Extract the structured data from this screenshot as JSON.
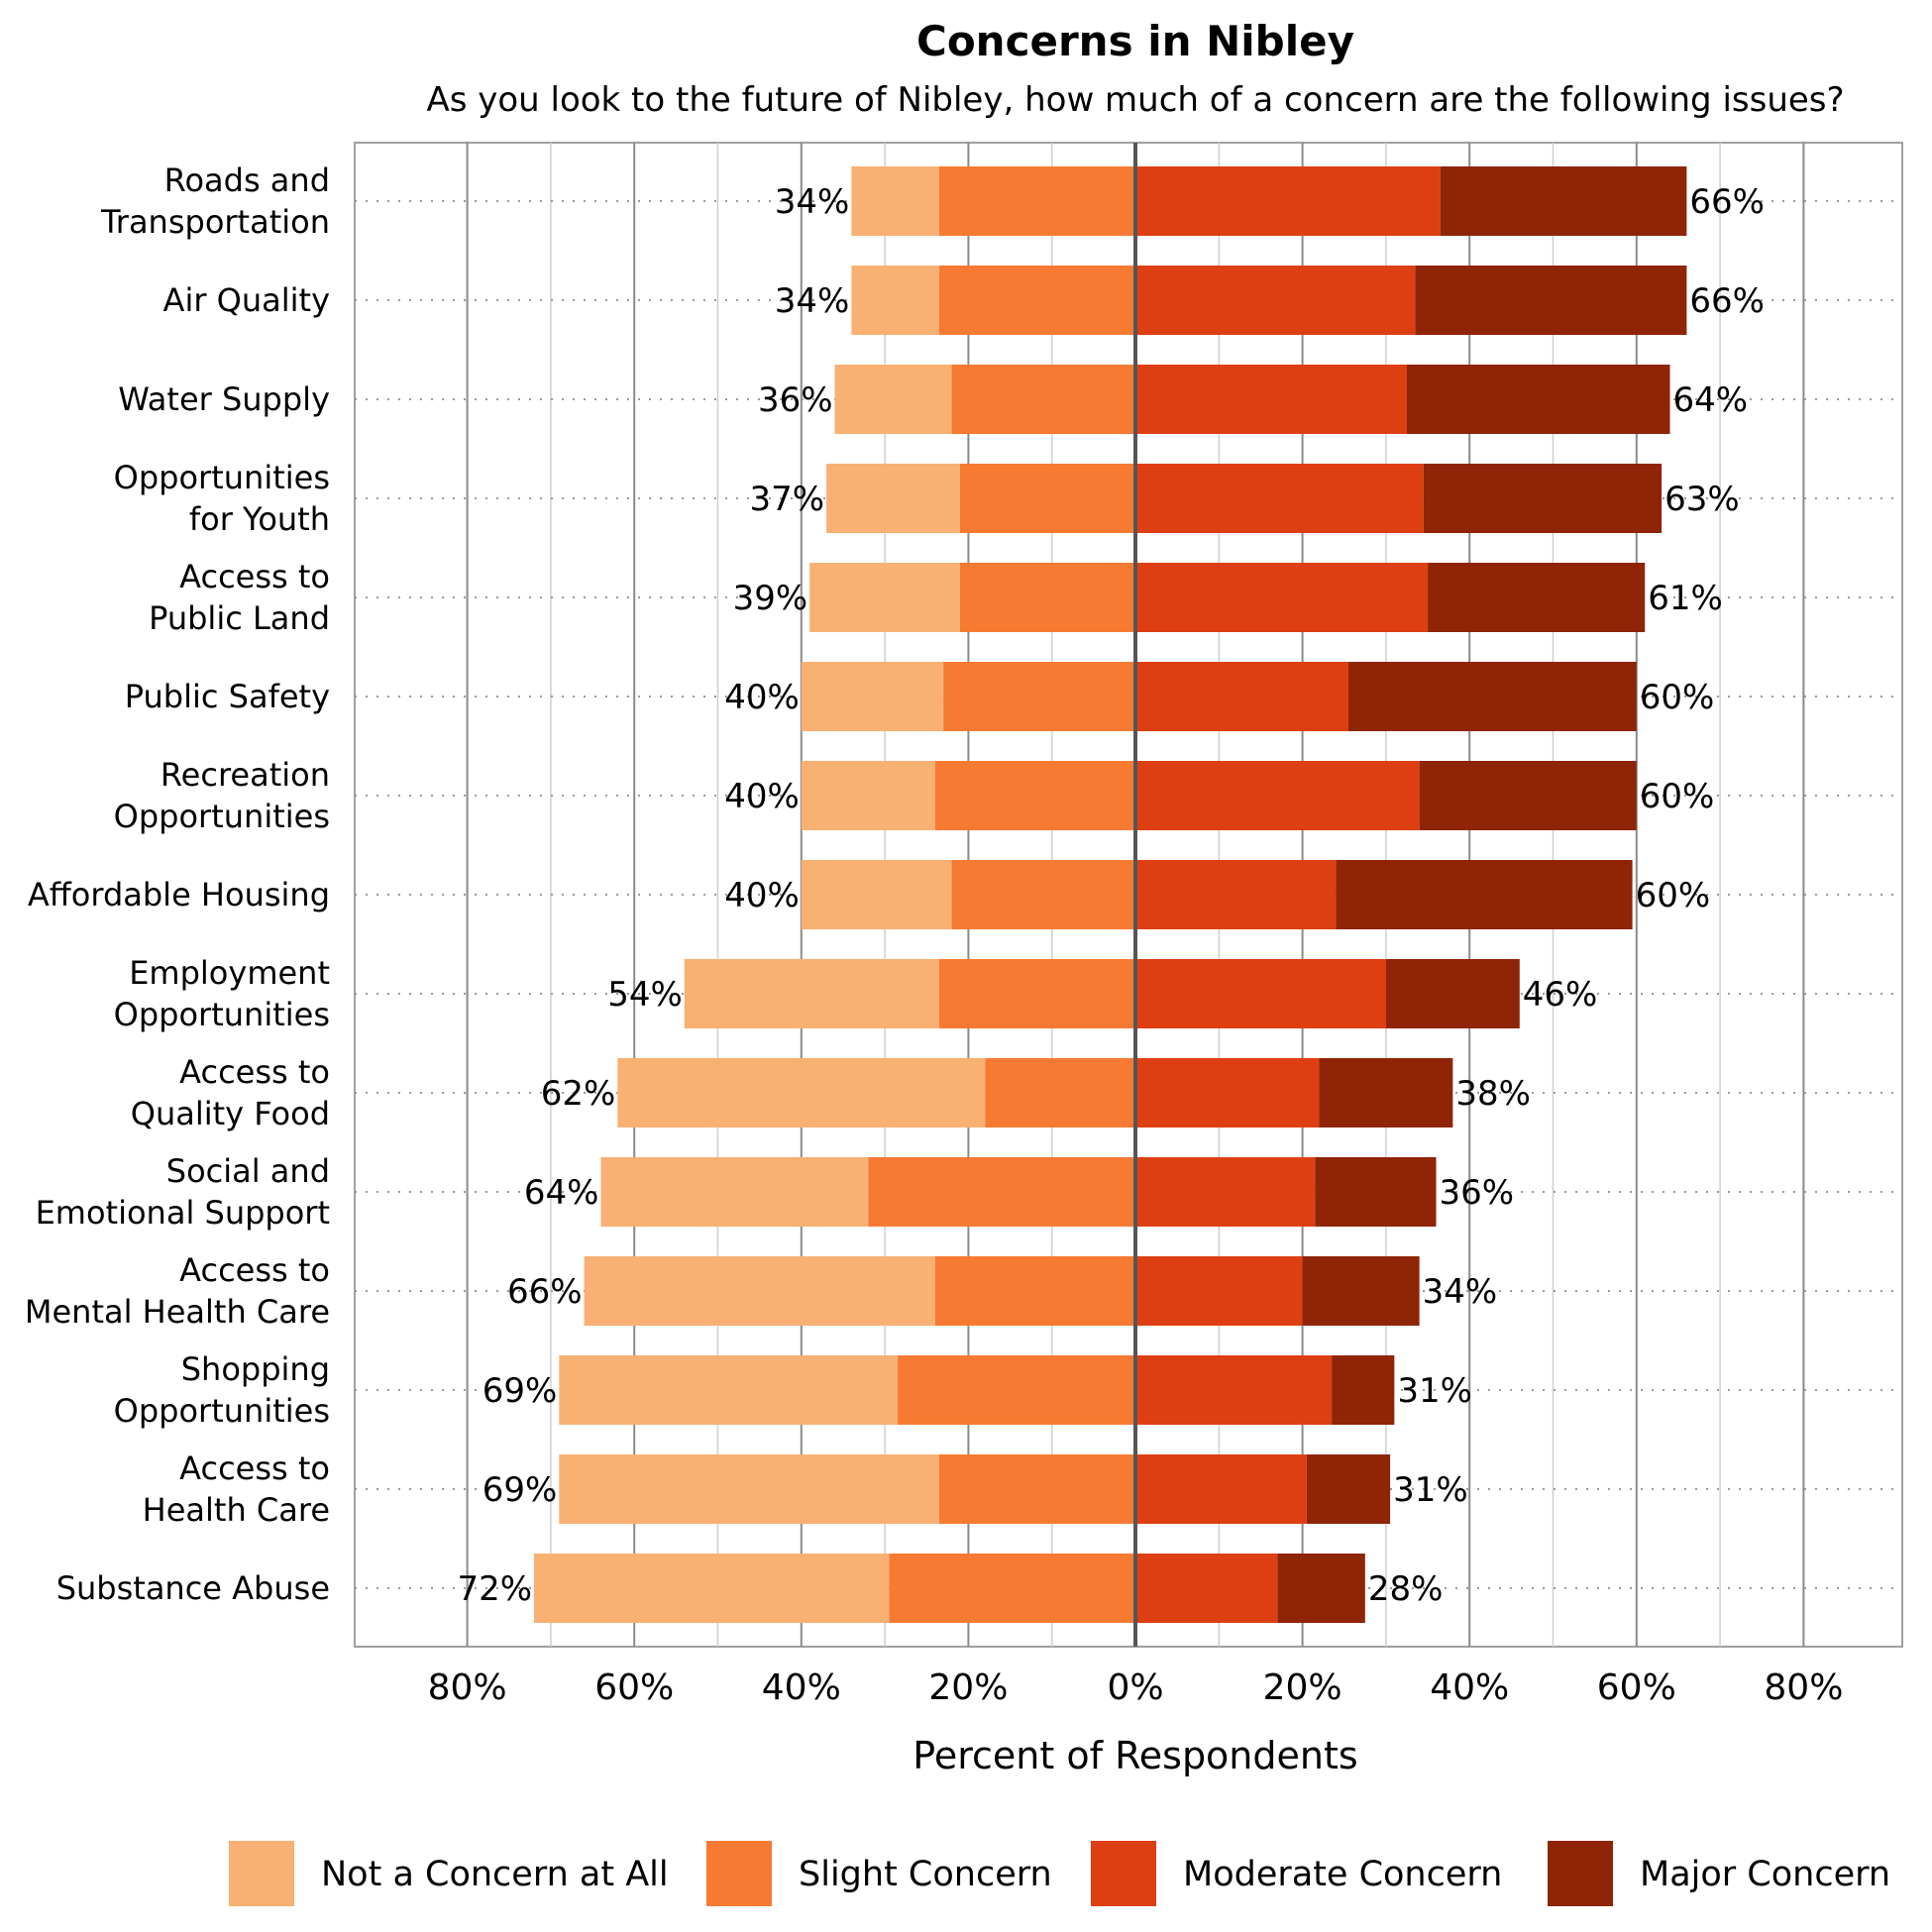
{
  "chart_data": {
    "type": "bar",
    "orientation": "horizontal-diverging-stacked",
    "title": "Concerns in Nibley",
    "subtitle": "As you look to the future of Nibley, how much of a concern are the following issues?",
    "xlabel": "Percent of Respondents",
    "ylabel": "",
    "xlim": [
      -80,
      80
    ],
    "x_ticks": [
      -80,
      -60,
      -40,
      -20,
      0,
      20,
      40,
      60,
      80
    ],
    "x_tick_labels": [
      "80%",
      "60%",
      "40%",
      "20%",
      "0%",
      "20%",
      "40%",
      "60%",
      "80%"
    ],
    "grid": true,
    "legend_position": "bottom",
    "categories": [
      [
        "Roads and",
        "Transportation"
      ],
      [
        "Air Quality"
      ],
      [
        "Water Supply"
      ],
      [
        "Opportunities",
        "for Youth"
      ],
      [
        "Access to",
        "Public Land"
      ],
      [
        "Public Safety"
      ],
      [
        "Recreation",
        "Opportunities"
      ],
      [
        "Affordable Housing"
      ],
      [
        "Employment",
        "Opportunities"
      ],
      [
        "Access to",
        "Quality Food"
      ],
      [
        "Social and",
        "Emotional Support"
      ],
      [
        "Access to",
        "Mental Health Care"
      ],
      [
        "Shopping",
        "Opportunities"
      ],
      [
        "Access to",
        "Health Care"
      ],
      [
        "Substance Abuse"
      ]
    ],
    "series": [
      {
        "name": "Not a Concern at All",
        "color": "#f9b073",
        "side": "left",
        "values": [
          10.5,
          10.5,
          14,
          16,
          18,
          17,
          16,
          18,
          30.5,
          44,
          32,
          42,
          40.5,
          45.5,
          42.5
        ]
      },
      {
        "name": "Slight Concern",
        "color": "#f77a32",
        "side": "left",
        "values": [
          23.5,
          23.5,
          22,
          21,
          21,
          23,
          24,
          22,
          23.5,
          18,
          32,
          24,
          28.5,
          23.5,
          29.5
        ]
      },
      {
        "name": "Moderate Concern",
        "color": "#de3f12",
        "side": "right",
        "values": [
          36.5,
          33.5,
          32.5,
          34.5,
          35,
          25.5,
          34,
          24,
          30,
          22,
          21.5,
          20,
          23.5,
          20.5,
          17
        ]
      },
      {
        "name": "Major Concern",
        "color": "#8f2406",
        "side": "right",
        "values": [
          29.5,
          32.5,
          31.5,
          28.5,
          26,
          34.5,
          26,
          35.5,
          16,
          16,
          14.5,
          14,
          7.5,
          10,
          10.5
        ]
      }
    ],
    "left_totals": [
      "34%",
      "34%",
      "36%",
      "37%",
      "39%",
      "40%",
      "40%",
      "40%",
      "54%",
      "62%",
      "64%",
      "66%",
      "69%",
      "69%",
      "72%"
    ],
    "right_totals": [
      "66%",
      "66%",
      "64%",
      "63%",
      "61%",
      "60%",
      "60%",
      "60%",
      "46%",
      "38%",
      "36%",
      "34%",
      "31%",
      "31%",
      "28%"
    ]
  }
}
